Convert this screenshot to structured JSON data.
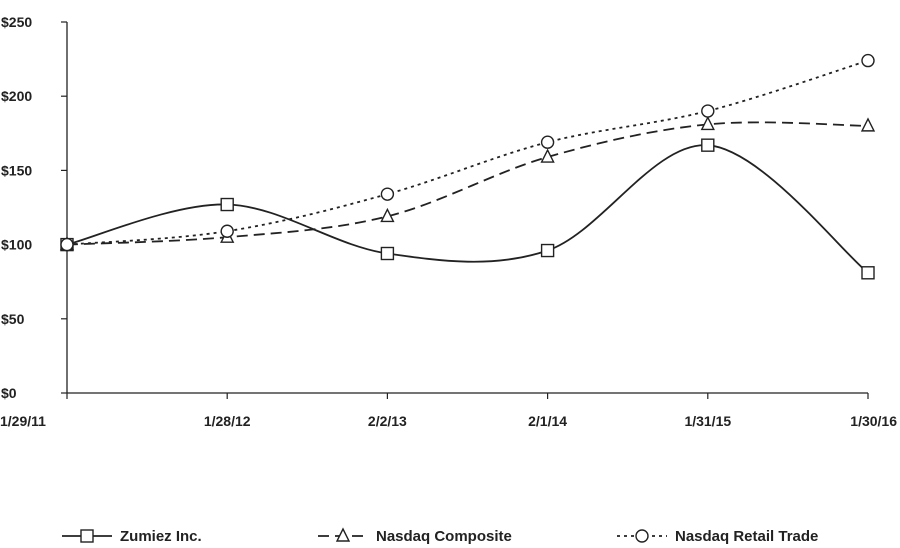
{
  "chart_data": {
    "type": "line",
    "title": "",
    "xlabel": "",
    "ylabel": "",
    "categories": [
      "1/29/11",
      "1/28/12",
      "2/2/13",
      "2/1/14",
      "1/31/15",
      "1/30/16"
    ],
    "y_ticks": [
      "$0",
      "$50",
      "$100",
      "$150",
      "$200",
      "$250"
    ],
    "ylim": [
      0,
      250
    ],
    "grid": false,
    "legend_position": "bottom",
    "series": [
      {
        "name": "Zumiez Inc.",
        "values": [
          100,
          127,
          94,
          96,
          167,
          81
        ],
        "marker": "square",
        "dash": "solid"
      },
      {
        "name": "Nasdaq Composite",
        "values": [
          100,
          105,
          119,
          159,
          181,
          180
        ],
        "marker": "triangle",
        "dash": "dashed"
      },
      {
        "name": "Nasdaq Retail Trade",
        "values": [
          100,
          109,
          134,
          169,
          190,
          224
        ],
        "marker": "circle",
        "dash": "dotted"
      }
    ]
  }
}
